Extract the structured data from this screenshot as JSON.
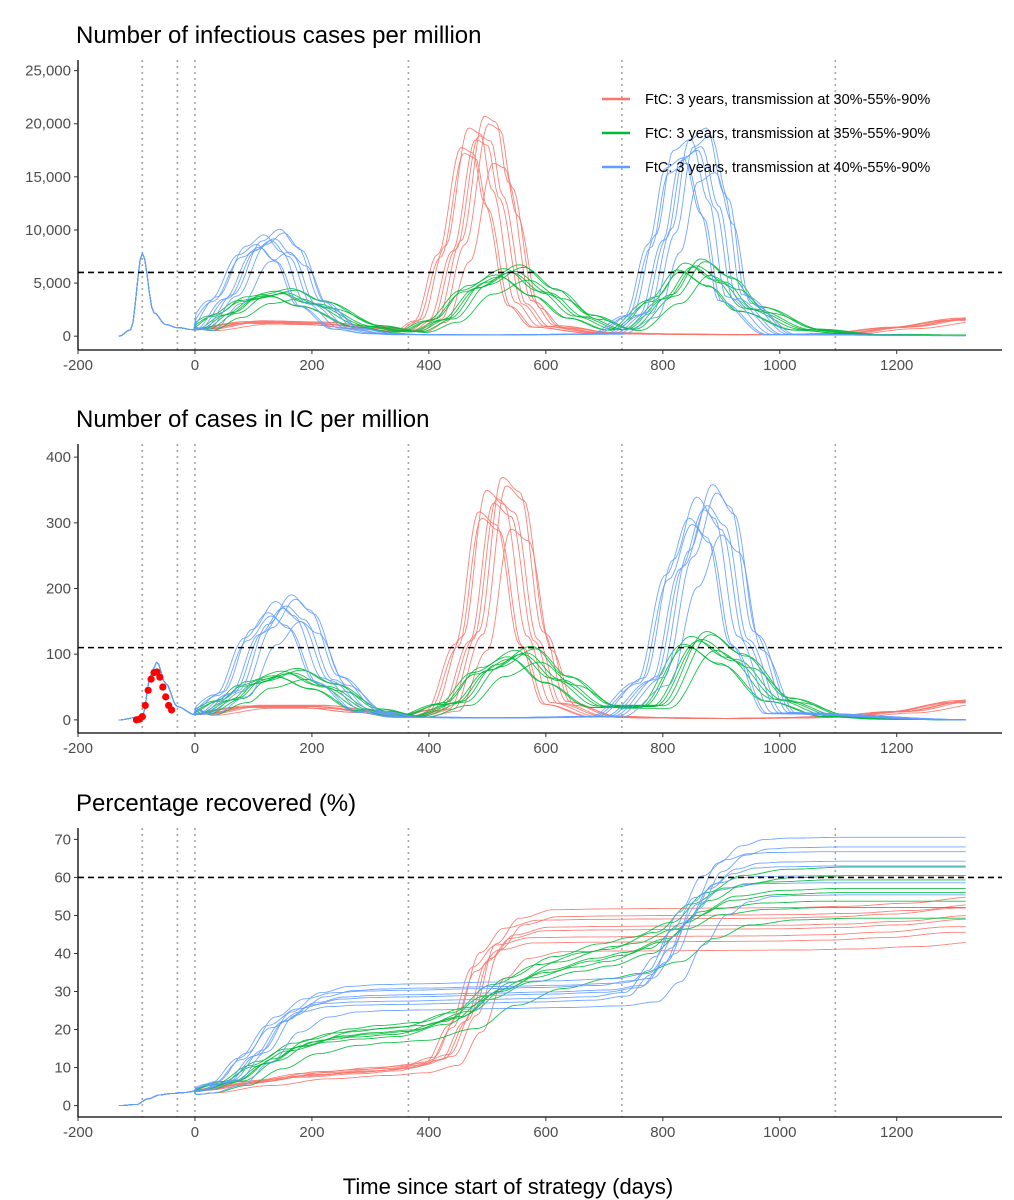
{
  "x_axis_title": "Time since start of strategy (days)",
  "legend": [
    {
      "label": "FtC: 3 years, transmission at 30%-55%-90%",
      "color": "#F8766D"
    },
    {
      "label": "FtC: 3 years, transmission at 35%-55%-90%",
      "color": "#00BA38"
    },
    {
      "label": "FtC: 3 years, transmission at 40%-55%-90%",
      "color": "#619CFF"
    }
  ],
  "observed_color": "#FF0000",
  "chart_data": [
    {
      "type": "line",
      "title": "Number of infectious cases per million",
      "xlabel": "",
      "ylabel": "",
      "xlim": [
        -200,
        1380
      ],
      "ylim": [
        -1300,
        26000
      ],
      "x_ticks": [
        -200,
        0,
        200,
        400,
        600,
        800,
        1000,
        1200
      ],
      "y_ticks": [
        0,
        5000,
        10000,
        15000,
        20000,
        25000
      ],
      "y_tick_labels": [
        "0",
        "5,000",
        "10,000",
        "15,000",
        "20,000",
        "25,000"
      ],
      "threshold": 6000,
      "vlines": [
        -90,
        -30,
        0,
        365,
        730,
        1095
      ],
      "grid": false,
      "legend_position": "top-right",
      "series": [
        {
          "name": "FtC: 3 years, transmission at 30%-55%-90%",
          "color": "#F8766D",
          "x": [
            -130,
            -110,
            -90,
            -70,
            -50,
            -30,
            0,
            100,
            200,
            300,
            365,
            400,
            440,
            480,
            500,
            520,
            560,
            600,
            700,
            800,
            900,
            1000,
            1100,
            1200,
            1320
          ],
          "y": [
            0,
            600,
            7800,
            2200,
            1100,
            800,
            600,
            1300,
            1200,
            800,
            500,
            1500,
            8000,
            18500,
            18000,
            13000,
            3000,
            900,
            300,
            200,
            150,
            150,
            250,
            800,
            1600
          ]
        },
        {
          "name": "FtC: 3 years, transmission at 35%-55%-90%",
          "color": "#00BA38",
          "x": [
            -130,
            -110,
            -90,
            -70,
            -50,
            -30,
            0,
            50,
            100,
            150,
            200,
            300,
            365,
            420,
            480,
            540,
            600,
            660,
            730,
            800,
            850,
            900,
            950,
            1050,
            1150,
            1320
          ],
          "y": [
            0,
            600,
            7800,
            2200,
            1100,
            800,
            600,
            2000,
            3500,
            4000,
            3000,
            900,
            400,
            1500,
            4500,
            6000,
            4000,
            1800,
            600,
            3500,
            6500,
            5000,
            2500,
            600,
            150,
            100
          ]
        },
        {
          "name": "FtC: 3 years, transmission at 40%-55%-90%",
          "color": "#619CFF",
          "x": [
            -130,
            -110,
            -90,
            -70,
            -50,
            -30,
            0,
            50,
            100,
            130,
            160,
            200,
            260,
            320,
            365,
            500,
            700,
            760,
            800,
            830,
            860,
            890,
            920,
            1000,
            1320
          ],
          "y": [
            0,
            600,
            7800,
            2200,
            1100,
            800,
            600,
            3500,
            8000,
            9000,
            7500,
            3000,
            700,
            250,
            150,
            120,
            200,
            2000,
            9000,
            16500,
            17500,
            12000,
            3500,
            150,
            50
          ]
        }
      ]
    },
    {
      "type": "line",
      "title": "Number of cases in IC per million",
      "xlabel": "",
      "ylabel": "",
      "xlim": [
        -200,
        1380
      ],
      "ylim": [
        -20,
        420
      ],
      "x_ticks": [
        -200,
        0,
        200,
        400,
        600,
        800,
        1000,
        1200
      ],
      "y_ticks": [
        0,
        100,
        200,
        300,
        400
      ],
      "y_tick_labels": [
        "0",
        "100",
        "200",
        "300",
        "400"
      ],
      "threshold": 110,
      "vlines": [
        -90,
        -30,
        0,
        365,
        730,
        1095
      ],
      "grid": false,
      "series": [
        {
          "name": "FtC: 3 years, transmission at 30%-55%-90%",
          "color": "#F8766D",
          "x": [
            -130,
            -90,
            -75,
            -65,
            -50,
            -30,
            0,
            100,
            200,
            300,
            365,
            420,
            470,
            510,
            540,
            580,
            620,
            700,
            800,
            900,
            1000,
            1100,
            1200,
            1320
          ],
          "y": [
            0,
            5,
            70,
            88,
            55,
            20,
            8,
            20,
            20,
            12,
            5,
            15,
            120,
            330,
            310,
            120,
            25,
            5,
            3,
            2,
            3,
            5,
            12,
            28
          ]
        },
        {
          "name": "FtC: 3 years, transmission at 35%-55%-90%",
          "color": "#00BA38",
          "x": [
            -130,
            -90,
            -75,
            -65,
            -50,
            -30,
            0,
            60,
            100,
            160,
            220,
            300,
            365,
            440,
            500,
            560,
            620,
            700,
            780,
            860,
            920,
            1000,
            1100,
            1200,
            1320
          ],
          "y": [
            0,
            5,
            70,
            88,
            55,
            20,
            8,
            30,
            55,
            70,
            50,
            15,
            5,
            25,
            75,
            100,
            60,
            20,
            20,
            120,
            90,
            30,
            5,
            1,
            0
          ]
        },
        {
          "name": "FtC: 3 years, transmission at 40%-55%-90%",
          "color": "#619CFF",
          "x": [
            -130,
            -90,
            -75,
            -65,
            -50,
            -30,
            0,
            60,
            110,
            150,
            180,
            230,
            300,
            365,
            500,
            700,
            780,
            830,
            870,
            900,
            940,
            1000,
            1320
          ],
          "y": [
            0,
            5,
            70,
            88,
            55,
            20,
            8,
            40,
            130,
            170,
            150,
            60,
            12,
            4,
            3,
            5,
            60,
            230,
            320,
            290,
            120,
            10,
            0
          ]
        }
      ],
      "observed": {
        "x": [
          -100,
          -95,
          -90,
          -85,
          -80,
          -75,
          -70,
          -65,
          -60,
          -55,
          -50,
          -45,
          -40
        ],
        "y": [
          0,
          1,
          5,
          22,
          45,
          62,
          72,
          73,
          65,
          50,
          35,
          22,
          15
        ]
      }
    },
    {
      "type": "line",
      "title": "Percentage recovered (%)",
      "xlabel": "",
      "ylabel": "",
      "xlim": [
        -200,
        1380
      ],
      "ylim": [
        -3,
        73
      ],
      "x_ticks": [
        -200,
        0,
        200,
        400,
        600,
        800,
        1000,
        1200
      ],
      "y_ticks": [
        0,
        10,
        20,
        30,
        40,
        50,
        60,
        70
      ],
      "y_tick_labels": [
        "0",
        "10",
        "20",
        "30",
        "40",
        "50",
        "60",
        "70"
      ],
      "threshold": 60,
      "vlines": [
        -90,
        -30,
        0,
        365,
        730,
        1095
      ],
      "grid": false,
      "series": [
        {
          "name": "FtC: 3 years, transmission at 30%-55%-90%",
          "color": "#F8766D",
          "x": [
            -130,
            -100,
            -80,
            -60,
            -40,
            -20,
            0,
            100,
            200,
            300,
            365,
            420,
            460,
            500,
            540,
            600,
            700,
            800,
            900,
            1000,
            1100,
            1200,
            1320
          ],
          "y": [
            0,
            0.3,
            1.8,
            2.8,
            3.2,
            3.4,
            3.8,
            6,
            8,
            9,
            9.8,
            12,
            22,
            38,
            44,
            46,
            46.2,
            46.3,
            46.4,
            46.5,
            46.8,
            47.5,
            49
          ]
        },
        {
          "name": "FtC: 3 years, transmission at 35%-55%-90%",
          "color": "#00BA38",
          "x": [
            -130,
            -100,
            -80,
            -60,
            -40,
            -20,
            0,
            60,
            120,
            180,
            250,
            300,
            365,
            450,
            520,
            600,
            680,
            730,
            800,
            860,
            920,
            1000,
            1100,
            1200,
            1320
          ],
          "y": [
            0,
            0.3,
            1.8,
            2.8,
            3.2,
            3.4,
            3.8,
            6,
            11,
            15.5,
            18,
            18.8,
            19.5,
            23,
            30,
            35,
            38,
            39.5,
            43,
            50,
            54,
            55.5,
            56,
            56,
            56
          ]
        },
        {
          "name": "FtC: 3 years, transmission at 40%-55%-90%",
          "color": "#619CFF",
          "x": [
            -130,
            -100,
            -80,
            -60,
            -40,
            -20,
            0,
            50,
            100,
            150,
            200,
            250,
            300,
            365,
            500,
            600,
            700,
            760,
            800,
            840,
            880,
            920,
            960,
            1000,
            1100,
            1320
          ],
          "y": [
            0,
            0.3,
            1.8,
            2.8,
            3.2,
            3.4,
            3.8,
            6,
            13,
            22,
            26.5,
            28,
            28.4,
            28.6,
            29,
            29.3,
            29.8,
            31,
            37,
            48,
            57,
            61,
            62.5,
            62.8,
            63,
            63
          ]
        }
      ]
    }
  ]
}
